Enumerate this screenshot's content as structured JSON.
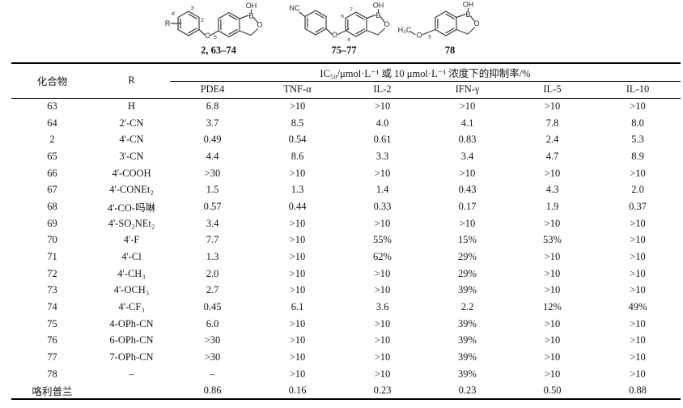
{
  "structures": {
    "s1": {
      "caption": "2, 63–74",
      "r_label": "R",
      "p2": "2'",
      "p3": "3'",
      "p4": "4'",
      "o_link": "O",
      "pos5": "5",
      "b": "B",
      "o_ring": "O",
      "oh": "OH"
    },
    "s2": {
      "caption": "75–77",
      "nc": "NC",
      "p4": "4",
      "p6": "6",
      "p7": "7",
      "o_link": "O",
      "b": "B",
      "o_ring": "O",
      "oh": "OH"
    },
    "s3": {
      "caption": "78",
      "h3c": "H₃C",
      "o_link": "O",
      "pos5": "5",
      "b": "B",
      "o_ring": "O",
      "oh": "OH"
    }
  },
  "table": {
    "col_compound": "化合物",
    "col_r": "R",
    "assay_header": "IC₅₀/μmol·L⁻¹ 或 10 μmol·L⁻¹ 浓度下的抑制率/%",
    "assays": [
      "PDE4",
      "TNF-α",
      "IL-2",
      "IFN-γ",
      "IL-5",
      "IL-10"
    ],
    "rows": [
      {
        "compound": "63",
        "r": "H",
        "values": [
          "6.8",
          ">10",
          ">10",
          ">10",
          ">10",
          ">10"
        ]
      },
      {
        "compound": "64",
        "r": "2'-CN",
        "values": [
          "3.7",
          "8.5",
          "4.0",
          "4.1",
          "7.8",
          "8.0"
        ]
      },
      {
        "compound": "2",
        "r": "4'-CN",
        "values": [
          "0.49",
          "0.54",
          "0.61",
          "0.83",
          "2.4",
          "5.3"
        ]
      },
      {
        "compound": "65",
        "r": "3'-CN",
        "values": [
          "4.4",
          "8.6",
          "3.3",
          "3.4",
          "4.7",
          "8.9"
        ]
      },
      {
        "compound": "66",
        "r": "4'-COOH",
        "values": [
          ">30",
          ">10",
          ">10",
          ">10",
          ">10",
          ">10"
        ]
      },
      {
        "compound": "67",
        "r": "4'-CONEt₂",
        "values": [
          "1.5",
          "1.3",
          "1.4",
          "0.43",
          "4.3",
          "2.0"
        ]
      },
      {
        "compound": "68",
        "r": "4'-CO-吗啉",
        "values": [
          "0.57",
          "0.44",
          "0.33",
          "0.17",
          "1.9",
          "0.37"
        ]
      },
      {
        "compound": "69",
        "r": "4'-SO₂NEt₂",
        "values": [
          "3.4",
          ">10",
          ">10",
          ">10",
          ">10",
          ">10"
        ]
      },
      {
        "compound": "70",
        "r": "4'-F",
        "values": [
          "7.7",
          ">10",
          "55%",
          "15%",
          "53%",
          ">10"
        ]
      },
      {
        "compound": "71",
        "r": "4'-Cl",
        "values": [
          "1.3",
          ">10",
          "62%",
          "29%",
          ">10",
          ">10"
        ]
      },
      {
        "compound": "72",
        "r": "4'-CH₃",
        "values": [
          "2.0",
          ">10",
          ">10",
          "29%",
          ">10",
          ">10"
        ]
      },
      {
        "compound": "73",
        "r": "4'-OCH₃",
        "values": [
          "2.7",
          ">10",
          ">10",
          "39%",
          ">10",
          ">10"
        ]
      },
      {
        "compound": "74",
        "r": "4'-CF₃",
        "values": [
          "0.45",
          "6.1",
          "3.6",
          "2.2",
          "12%",
          "49%"
        ]
      },
      {
        "compound": "75",
        "r": "4-OPh-CN",
        "values": [
          "6.0",
          ">10",
          ">10",
          "39%",
          ">10",
          ">10"
        ]
      },
      {
        "compound": "76",
        "r": "6-OPh-CN",
        "values": [
          ">30",
          ">10",
          ">10",
          "39%",
          ">10",
          ">10"
        ]
      },
      {
        "compound": "77",
        "r": "7-OPh-CN",
        "values": [
          ">30",
          ">10",
          ">10",
          "39%",
          ">10",
          ">10"
        ]
      },
      {
        "compound": "78",
        "r": "–",
        "values": [
          "–",
          ">10",
          ">10",
          "39%",
          ">10",
          ">10"
        ]
      },
      {
        "compound": "咯利普兰",
        "r": "",
        "values": [
          "0.86",
          "0.16",
          "0.23",
          "0.23",
          "0.50",
          "0.88"
        ]
      }
    ]
  }
}
